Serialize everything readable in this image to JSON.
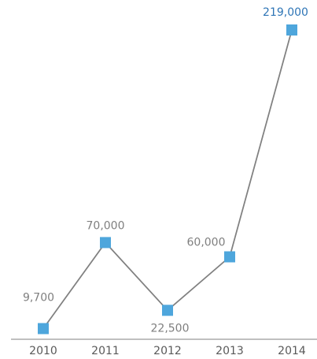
{
  "chart_data": {
    "type": "line",
    "title": "",
    "xlabel": "",
    "ylabel": "",
    "categories": [
      "2010",
      "2011",
      "2012",
      "2013",
      "2014"
    ],
    "series": [
      {
        "values": [
          9700,
          70000,
          22500,
          60000,
          219000
        ],
        "labels": [
          "9,700",
          "70,000",
          "22,500",
          "60,000",
          "219,000"
        ]
      }
    ],
    "ylim": [
      0,
      219000
    ],
    "grid": false,
    "legend": "none",
    "colors": {
      "line": "#808080",
      "marker": "#4ea6dc",
      "axis": "#808080",
      "label": "#7f7f7f",
      "highlight_label": "#2e75b6",
      "tick_label": "#595959"
    }
  }
}
